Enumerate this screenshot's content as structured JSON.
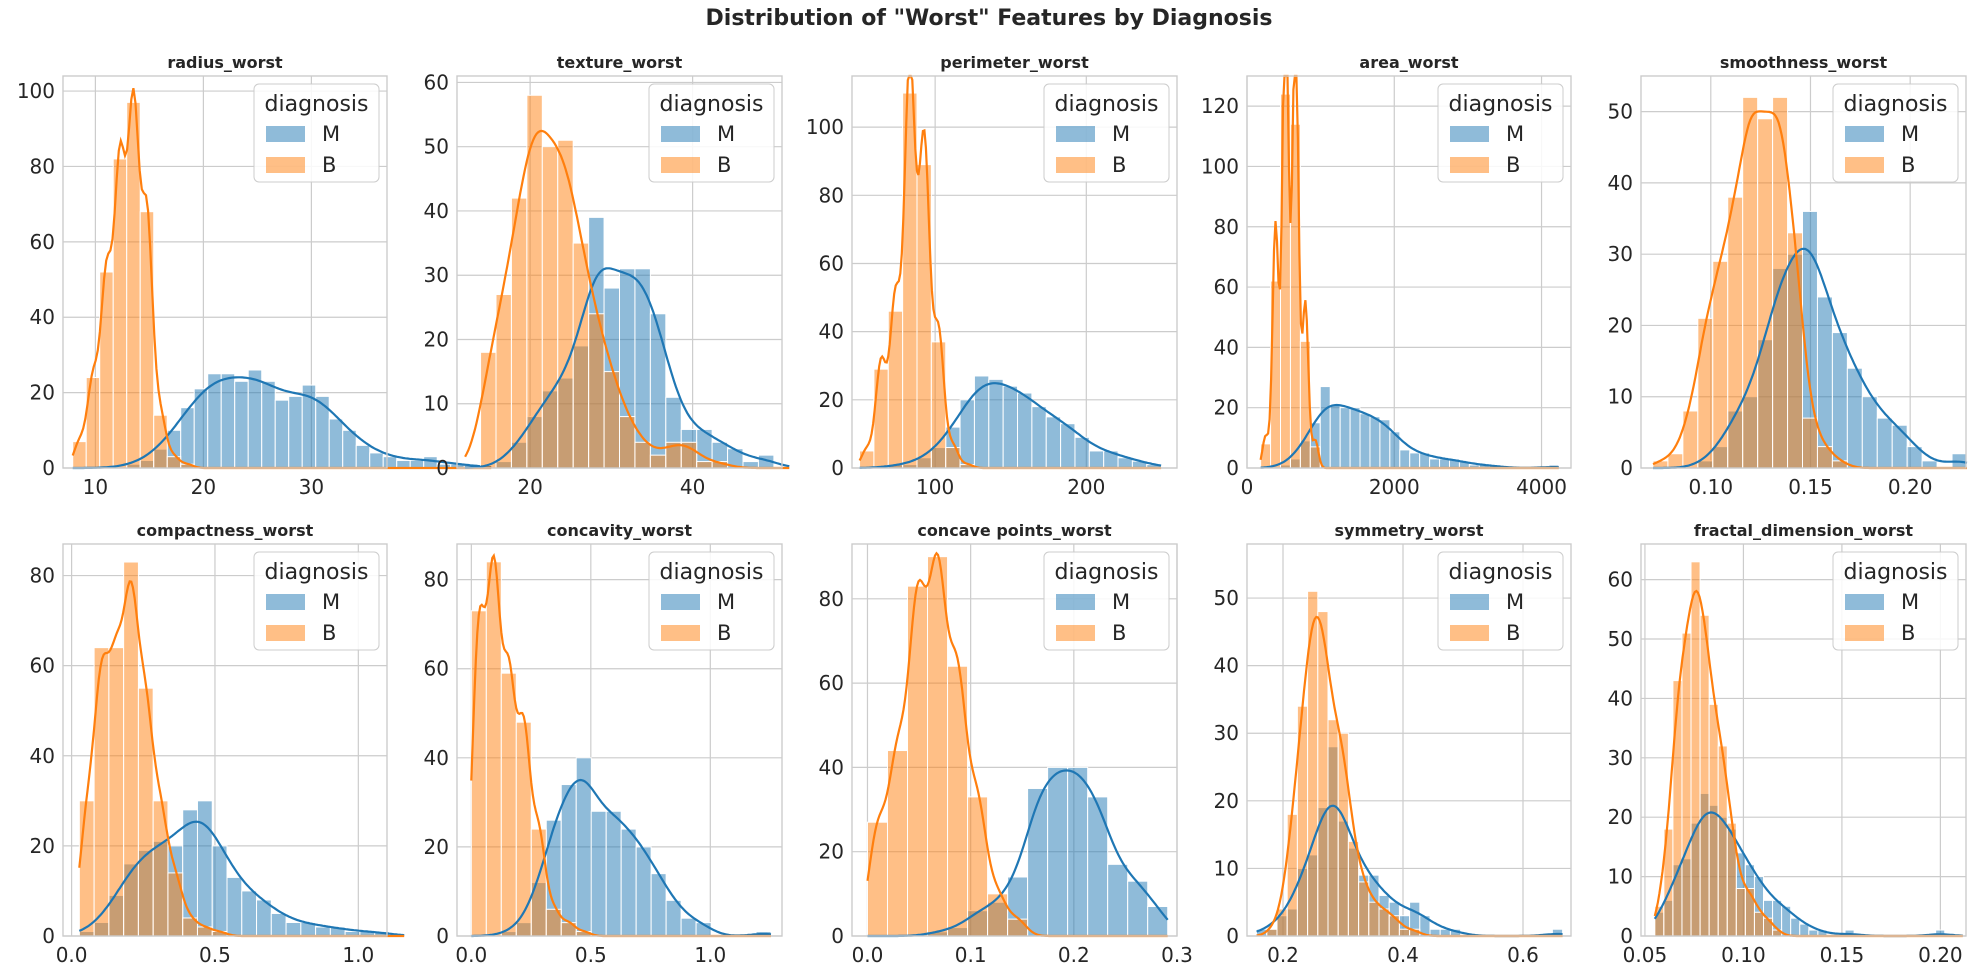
{
  "figure": {
    "suptitle": "Distribution of \"Worst\" Features by Diagnosis",
    "legend_title": "diagnosis",
    "colors": {
      "M": "#1f77b4",
      "B": "#ff7f0e",
      "grid": "#cccccc",
      "axes": "#cccccc"
    }
  },
  "chart_data": [
    {
      "type": "bar",
      "title": "radius_worst",
      "xlabel": "",
      "ylabel": "",
      "xlim": [
        7,
        37
      ],
      "ylim": [
        0,
        104
      ],
      "xticks": [
        10,
        20,
        30
      ],
      "yticks": [
        0,
        20,
        40,
        60,
        80,
        100
      ],
      "legend": {
        "position": "upper right",
        "entries": [
          "M",
          "B"
        ]
      },
      "bin_start": 7.9,
      "bin_width": 1.25,
      "series": [
        {
          "name": "M",
          "counts": [
            0,
            0,
            0,
            0,
            1,
            2,
            5,
            10,
            16,
            21,
            25,
            25,
            23,
            26,
            23,
            18,
            19,
            22,
            19,
            13,
            10,
            6,
            4,
            3,
            2,
            2,
            3,
            1,
            1,
            1,
            0
          ]
        },
        {
          "name": "B",
          "counts": [
            7,
            24,
            52,
            82,
            97,
            68,
            14,
            3,
            1,
            0,
            0,
            0,
            0,
            0,
            0,
            0,
            0,
            0,
            0,
            0,
            0,
            0,
            0,
            0,
            0,
            0,
            0,
            0,
            0,
            0,
            0
          ]
        }
      ]
    },
    {
      "type": "bar",
      "title": "texture_worst",
      "xlabel": "",
      "ylabel": "",
      "xlim": [
        11,
        51
      ],
      "ylim": [
        0,
        61
      ],
      "xticks": [
        20,
        40
      ],
      "yticks": [
        0,
        10,
        20,
        30,
        40,
        50,
        60
      ],
      "legend": {
        "position": "upper right",
        "entries": [
          "M",
          "B"
        ]
      },
      "bin_start": 12.0,
      "bin_width": 1.9,
      "series": [
        {
          "name": "M",
          "counts": [
            0,
            0,
            1,
            4,
            8,
            12,
            14,
            19,
            39,
            28,
            31,
            31,
            24,
            11,
            6,
            6,
            4,
            3,
            1,
            2,
            0
          ]
        },
        {
          "name": "B",
          "counts": [
            0,
            18,
            27,
            42,
            58,
            50,
            51,
            35,
            24,
            15,
            8,
            4,
            2,
            4,
            4,
            1,
            1,
            0,
            0,
            0,
            0
          ]
        }
      ]
    },
    {
      "type": "bar",
      "title": "perimeter_worst",
      "xlabel": "",
      "ylabel": "",
      "xlim": [
        45,
        260
      ],
      "ylim": [
        0,
        115
      ],
      "xticks": [
        100,
        200
      ],
      "yticks": [
        0,
        20,
        40,
        60,
        80,
        100
      ],
      "legend": {
        "position": "upper right",
        "entries": [
          "M",
          "B"
        ]
      },
      "bin_start": 50,
      "bin_width": 9.5,
      "series": [
        {
          "name": "M",
          "counts": [
            0,
            0,
            1,
            1,
            3,
            6,
            12,
            20,
            27,
            26,
            24,
            22,
            18,
            15,
            13,
            9,
            5,
            5,
            3,
            2,
            1
          ]
        },
        {
          "name": "B",
          "counts": [
            5,
            29,
            46,
            110,
            89,
            37,
            6,
            1,
            0,
            0,
            0,
            0,
            0,
            0,
            0,
            0,
            0,
            0,
            0,
            0,
            0
          ]
        }
      ]
    },
    {
      "type": "bar",
      "title": "area_worst",
      "xlabel": "",
      "ylabel": "",
      "xlim": [
        0,
        4400
      ],
      "ylim": [
        0,
        130
      ],
      "xticks": [
        0,
        2000,
        4000
      ],
      "yticks": [
        0,
        20,
        40,
        60,
        80,
        100,
        120
      ],
      "legend": {
        "position": "upper right",
        "entries": [
          "M",
          "B"
        ]
      },
      "bin_start": 185,
      "bin_width": 135,
      "series": [
        {
          "name": "M",
          "counts": [
            0,
            0,
            1,
            3,
            9,
            15,
            27,
            21,
            20,
            20,
            18,
            17,
            16,
            12,
            6,
            5,
            5,
            3,
            3,
            3,
            2,
            1,
            1,
            1,
            0,
            0,
            0,
            0,
            0,
            1
          ]
        },
        {
          "name": "B",
          "counts": [
            8,
            62,
            124,
            114,
            42,
            7,
            0,
            0,
            0,
            0,
            0,
            0,
            0,
            0,
            0,
            0,
            0,
            0,
            0,
            0,
            0,
            0,
            0,
            0,
            0,
            0,
            0,
            0,
            0,
            0
          ]
        }
      ]
    },
    {
      "type": "bar",
      "title": "smoothness_worst",
      "xlabel": "",
      "ylabel": "",
      "xlim": [
        0.065,
        0.228
      ],
      "ylim": [
        0,
        55
      ],
      "xticks": [
        0.1,
        0.15,
        0.2
      ],
      "yticks": [
        0,
        10,
        20,
        30,
        40,
        50
      ],
      "legend": {
        "position": "upper right",
        "entries": [
          "M",
          "B"
        ]
      },
      "bin_start": 0.071,
      "bin_width": 0.0075,
      "series": [
        {
          "name": "M",
          "counts": [
            0,
            0,
            0,
            1,
            3,
            8,
            10,
            18,
            28,
            30,
            36,
            24,
            19,
            14,
            10,
            7,
            6,
            3,
            1,
            0,
            2
          ]
        },
        {
          "name": "B",
          "counts": [
            1,
            2,
            8,
            21,
            29,
            38,
            52,
            49,
            52,
            33,
            7,
            3,
            1,
            0,
            0,
            0,
            0,
            0,
            0,
            0,
            0
          ]
        }
      ]
    },
    {
      "type": "bar",
      "title": "compactness_worst",
      "xlabel": "",
      "ylabel": "",
      "xlim": [
        -0.03,
        1.1
      ],
      "ylim": [
        0,
        87
      ],
      "xticks": [
        0.0,
        0.5,
        1.0
      ],
      "yticks": [
        0,
        20,
        40,
        60,
        80
      ],
      "legend": {
        "position": "upper right",
        "entries": [
          "M",
          "B"
        ]
      },
      "bin_start": 0.027,
      "bin_width": 0.0515,
      "series": [
        {
          "name": "M",
          "counts": [
            1,
            3,
            9,
            16,
            19,
            21,
            20,
            28,
            30,
            20,
            13,
            10,
            8,
            5,
            3,
            3,
            2,
            2,
            1,
            1,
            1,
            0
          ]
        },
        {
          "name": "B",
          "counts": [
            30,
            64,
            64,
            83,
            55,
            30,
            14,
            4,
            2,
            1,
            0,
            0,
            0,
            0,
            0,
            0,
            0,
            0,
            0,
            0,
            0,
            0
          ]
        }
      ]
    },
    {
      "type": "bar",
      "title": "concavity_worst",
      "xlabel": "",
      "ylabel": "",
      "xlim": [
        -0.06,
        1.3
      ],
      "ylim": [
        0,
        88
      ],
      "xticks": [
        0.0,
        0.5,
        1.0
      ],
      "yticks": [
        0,
        20,
        40,
        60,
        80
      ],
      "legend": {
        "position": "upper right",
        "entries": [
          "M",
          "B"
        ]
      },
      "bin_start": 0.0,
      "bin_width": 0.0627,
      "series": [
        {
          "name": "M",
          "counts": [
            0,
            0,
            1,
            3,
            12,
            26,
            34,
            40,
            28,
            28,
            24,
            20,
            14,
            8,
            4,
            3,
            0,
            0,
            0,
            1
          ]
        },
        {
          "name": "B",
          "counts": [
            73,
            84,
            59,
            48,
            24,
            6,
            3,
            1,
            0,
            0,
            0,
            0,
            0,
            0,
            0,
            0,
            0,
            0,
            0,
            0
          ]
        }
      ]
    },
    {
      "type": "bar",
      "title": "concave points_worst",
      "xlabel": "",
      "ylabel": "",
      "xlim": [
        -0.015,
        0.3
      ],
      "ylim": [
        0,
        93
      ],
      "xticks": [
        0.0,
        0.1,
        0.2,
        0.3
      ],
      "yticks": [
        0,
        20,
        40,
        60,
        80
      ],
      "legend": {
        "position": "upper right",
        "entries": [
          "M",
          "B"
        ]
      },
      "bin_start": 0.0,
      "bin_width": 0.0194,
      "series": [
        {
          "name": "M",
          "counts": [
            0,
            0,
            0,
            1,
            2,
            6,
            8,
            14,
            35,
            40,
            40,
            33,
            17,
            13,
            7
          ]
        },
        {
          "name": "B",
          "counts": [
            27,
            44,
            83,
            90,
            64,
            33,
            10,
            4,
            0,
            0,
            0,
            0,
            0,
            0,
            0
          ]
        }
      ]
    },
    {
      "type": "bar",
      "title": "symmetry_worst",
      "xlabel": "",
      "ylabel": "",
      "xlim": [
        0.14,
        0.68
      ],
      "ylim": [
        0,
        58
      ],
      "xticks": [
        0.2,
        0.4,
        0.6
      ],
      "yticks": [
        0,
        10,
        20,
        30,
        40,
        50
      ],
      "legend": {
        "position": "upper right",
        "entries": [
          "M",
          "B"
        ]
      },
      "bin_start": 0.156,
      "bin_width": 0.017,
      "series": [
        {
          "name": "M",
          "counts": [
            1,
            1,
            3,
            4,
            10,
            12,
            19,
            28,
            17,
            13,
            9,
            9,
            6,
            5,
            3,
            5,
            3,
            1,
            1,
            1,
            0,
            0,
            0,
            0,
            0,
            0,
            0,
            0,
            0,
            1
          ]
        },
        {
          "name": "B",
          "counts": [
            0,
            1,
            4,
            18,
            34,
            51,
            48,
            32,
            30,
            14,
            8,
            5,
            4,
            3,
            1,
            1,
            0,
            0,
            0,
            0,
            0,
            0,
            0,
            0,
            0,
            0,
            0,
            0,
            0,
            0
          ]
        }
      ]
    },
    {
      "type": "bar",
      "title": "fractal_dimension_worst",
      "xlabel": "",
      "ylabel": "",
      "xlim": [
        0.048,
        0.213
      ],
      "ylim": [
        0,
        66
      ],
      "xticks": [
        0.05,
        0.1,
        0.15,
        0.2
      ],
      "yticks": [
        0,
        10,
        20,
        30,
        40,
        50,
        60
      ],
      "legend": {
        "position": "upper right",
        "entries": [
          "M",
          "B"
        ]
      },
      "bin_start": 0.055,
      "bin_width": 0.0046,
      "series": [
        {
          "name": "M",
          "counts": [
            4,
            6,
            12,
            13,
            19,
            24,
            22,
            20,
            18,
            14,
            12,
            10,
            6,
            6,
            5,
            3,
            2,
            1,
            1,
            0,
            0,
            1,
            0,
            0,
            0,
            0,
            0,
            0,
            0,
            0,
            0,
            1,
            0,
            0
          ]
        },
        {
          "name": "B",
          "counts": [
            5,
            18,
            43,
            51,
            63,
            54,
            39,
            32,
            19,
            8,
            8,
            4,
            3,
            1,
            0,
            0,
            0,
            0,
            0,
            0,
            0,
            0,
            0,
            0,
            0,
            0,
            0,
            0,
            0,
            0,
            0,
            0,
            0,
            0
          ]
        }
      ]
    }
  ]
}
